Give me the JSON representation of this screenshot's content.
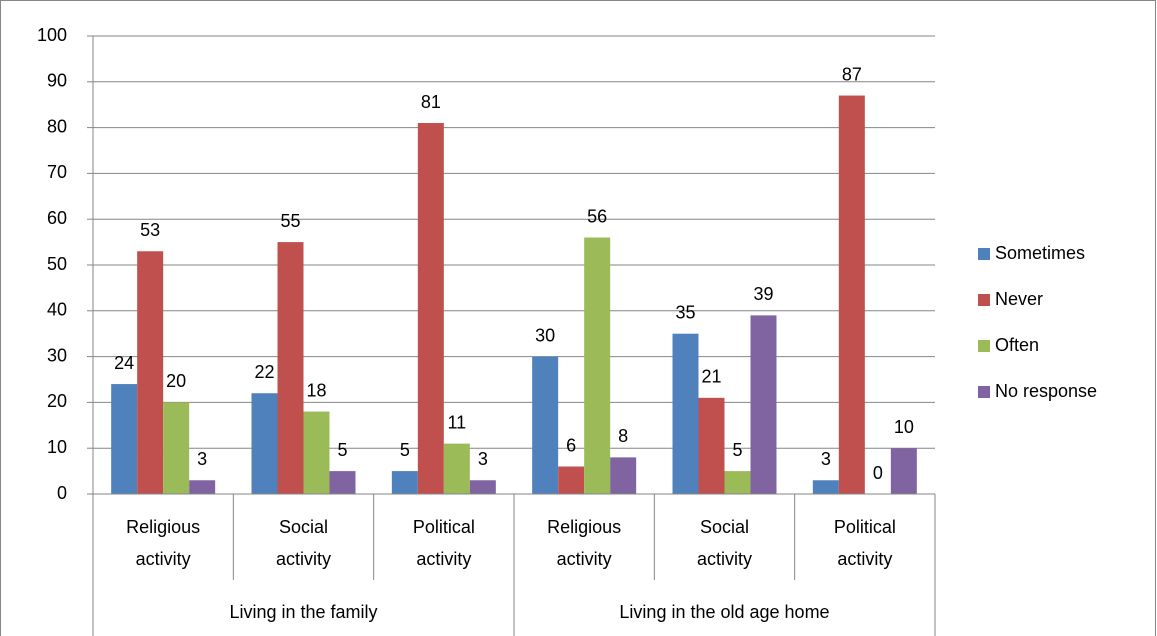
{
  "chart_data": {
    "type": "bar",
    "categories": [
      "Religious activity",
      "Social activity",
      "Political activity",
      "Religious activity",
      "Social activity",
      "Political activity"
    ],
    "groups": [
      {
        "label": "Living in the family",
        "span": 3
      },
      {
        "label": "Living in the old age home",
        "span": 3
      }
    ],
    "series": [
      {
        "name": "Sometimes",
        "color": "#4f81bd",
        "values": [
          24,
          22,
          5,
          30,
          35,
          3
        ]
      },
      {
        "name": "Never",
        "color": "#c0504d",
        "values": [
          53,
          55,
          81,
          6,
          21,
          87
        ]
      },
      {
        "name": "Often",
        "color": "#9bbb59",
        "values": [
          20,
          18,
          11,
          56,
          5,
          0
        ]
      },
      {
        "name": "No response",
        "color": "#8064a2",
        "values": [
          3,
          5,
          3,
          8,
          39,
          10
        ]
      }
    ],
    "ylim": [
      0,
      100
    ],
    "yticks": [
      0,
      10,
      20,
      30,
      40,
      50,
      60,
      70,
      80,
      90,
      100
    ],
    "grid": true,
    "legend": "right",
    "data_labels": true
  }
}
